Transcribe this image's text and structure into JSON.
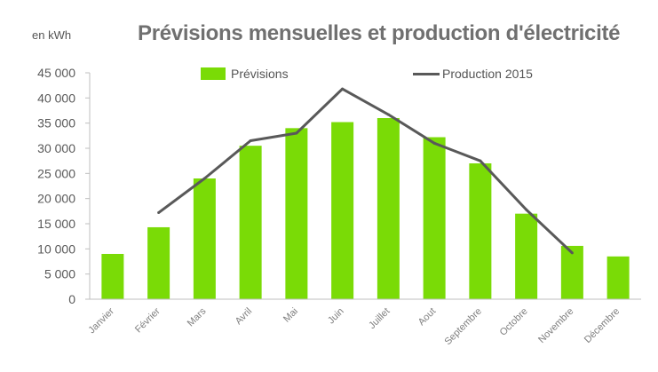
{
  "chart_data": {
    "type": "bar",
    "title": "Prévisions mensuelles et production d'électricité",
    "unit_label": "en kWh",
    "categories": [
      "Janvier",
      "Février",
      "Mars",
      "Avril",
      "Mai",
      "Juin",
      "Juillet",
      "Aout",
      "Septembre",
      "Octobre",
      "Novembre",
      "Décembre"
    ],
    "series": [
      {
        "name": "Prévisions",
        "kind": "bar",
        "color": "#7ADB06",
        "values": [
          9000,
          14300,
          24000,
          30500,
          34000,
          35200,
          36000,
          32200,
          27000,
          17000,
          10600,
          8500
        ]
      },
      {
        "name": "Production 2015",
        "kind": "line",
        "color": "#595959",
        "values": [
          null,
          17200,
          24000,
          31500,
          33000,
          41800,
          36700,
          31000,
          27500,
          17800,
          9200,
          null
        ]
      }
    ],
    "y_ticks": [
      "0",
      "5 000",
      "10 000",
      "15 000",
      "20 000",
      "25 000",
      "30 000",
      "35 000",
      "40 000",
      "45 000"
    ],
    "ylim": [
      0,
      45000
    ],
    "grid": false,
    "legend_position": "top"
  }
}
